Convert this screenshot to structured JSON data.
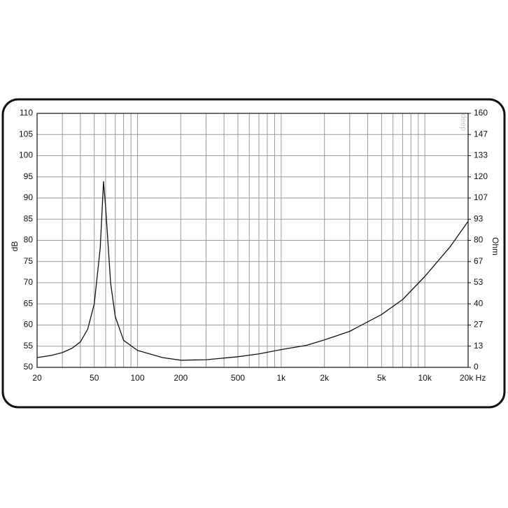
{
  "chart_data": {
    "type": "line",
    "log_x": true,
    "grid": true,
    "ylabel": "dB",
    "y2label": "Ohm",
    "watermark": "deep",
    "x": [
      20,
      25,
      30,
      35,
      40,
      45,
      50,
      55,
      58,
      60,
      65,
      70,
      80,
      100,
      150,
      200,
      300,
      500,
      700,
      1000,
      1500,
      2000,
      3000,
      5000,
      7000,
      10000,
      15000,
      20000
    ],
    "series": [
      {
        "axis": "y2",
        "color": "#111111",
        "values": [
          6.1,
          7.5,
          9.3,
          12,
          16,
          24,
          40,
          75,
          117,
          101,
          53,
          32,
          17,
          10.7,
          6.1,
          4.5,
          4.8,
          6.7,
          8.5,
          11.2,
          13.9,
          17.3,
          22.7,
          33.3,
          42.7,
          57.3,
          76,
          92
        ]
      }
    ],
    "xlim": [
      20,
      20000
    ],
    "xticks": [
      20,
      50,
      100,
      200,
      500,
      {
        "value": 1000,
        "label": "1k"
      },
      {
        "value": 2000,
        "label": "2k"
      },
      {
        "value": 5000,
        "label": "5k"
      },
      {
        "value": 10000,
        "label": "10k"
      },
      {
        "value": 20000,
        "label": "20k Hz"
      }
    ],
    "xminor": [
      30,
      40,
      60,
      70,
      80,
      90,
      300,
      400,
      600,
      700,
      800,
      900,
      3000,
      4000,
      6000,
      7000,
      8000,
      9000
    ],
    "ylim": [
      50,
      110
    ],
    "yticks": [
      50,
      55,
      60,
      65,
      70,
      75,
      80,
      85,
      90,
      95,
      100,
      105,
      110
    ],
    "y2lim": [
      0,
      160
    ],
    "y2ticks": [
      0,
      {
        "value": 13.333,
        "label": "13"
      },
      {
        "value": 26.667,
        "label": "27"
      },
      40,
      {
        "value": 53.333,
        "label": "53"
      },
      {
        "value": 66.667,
        "label": "67"
      },
      80,
      {
        "value": 93.333,
        "label": "93"
      },
      {
        "value": 106.667,
        "label": "107"
      },
      120,
      {
        "value": 133.333,
        "label": "133"
      },
      {
        "value": 146.667,
        "label": "147"
      },
      160
    ]
  }
}
